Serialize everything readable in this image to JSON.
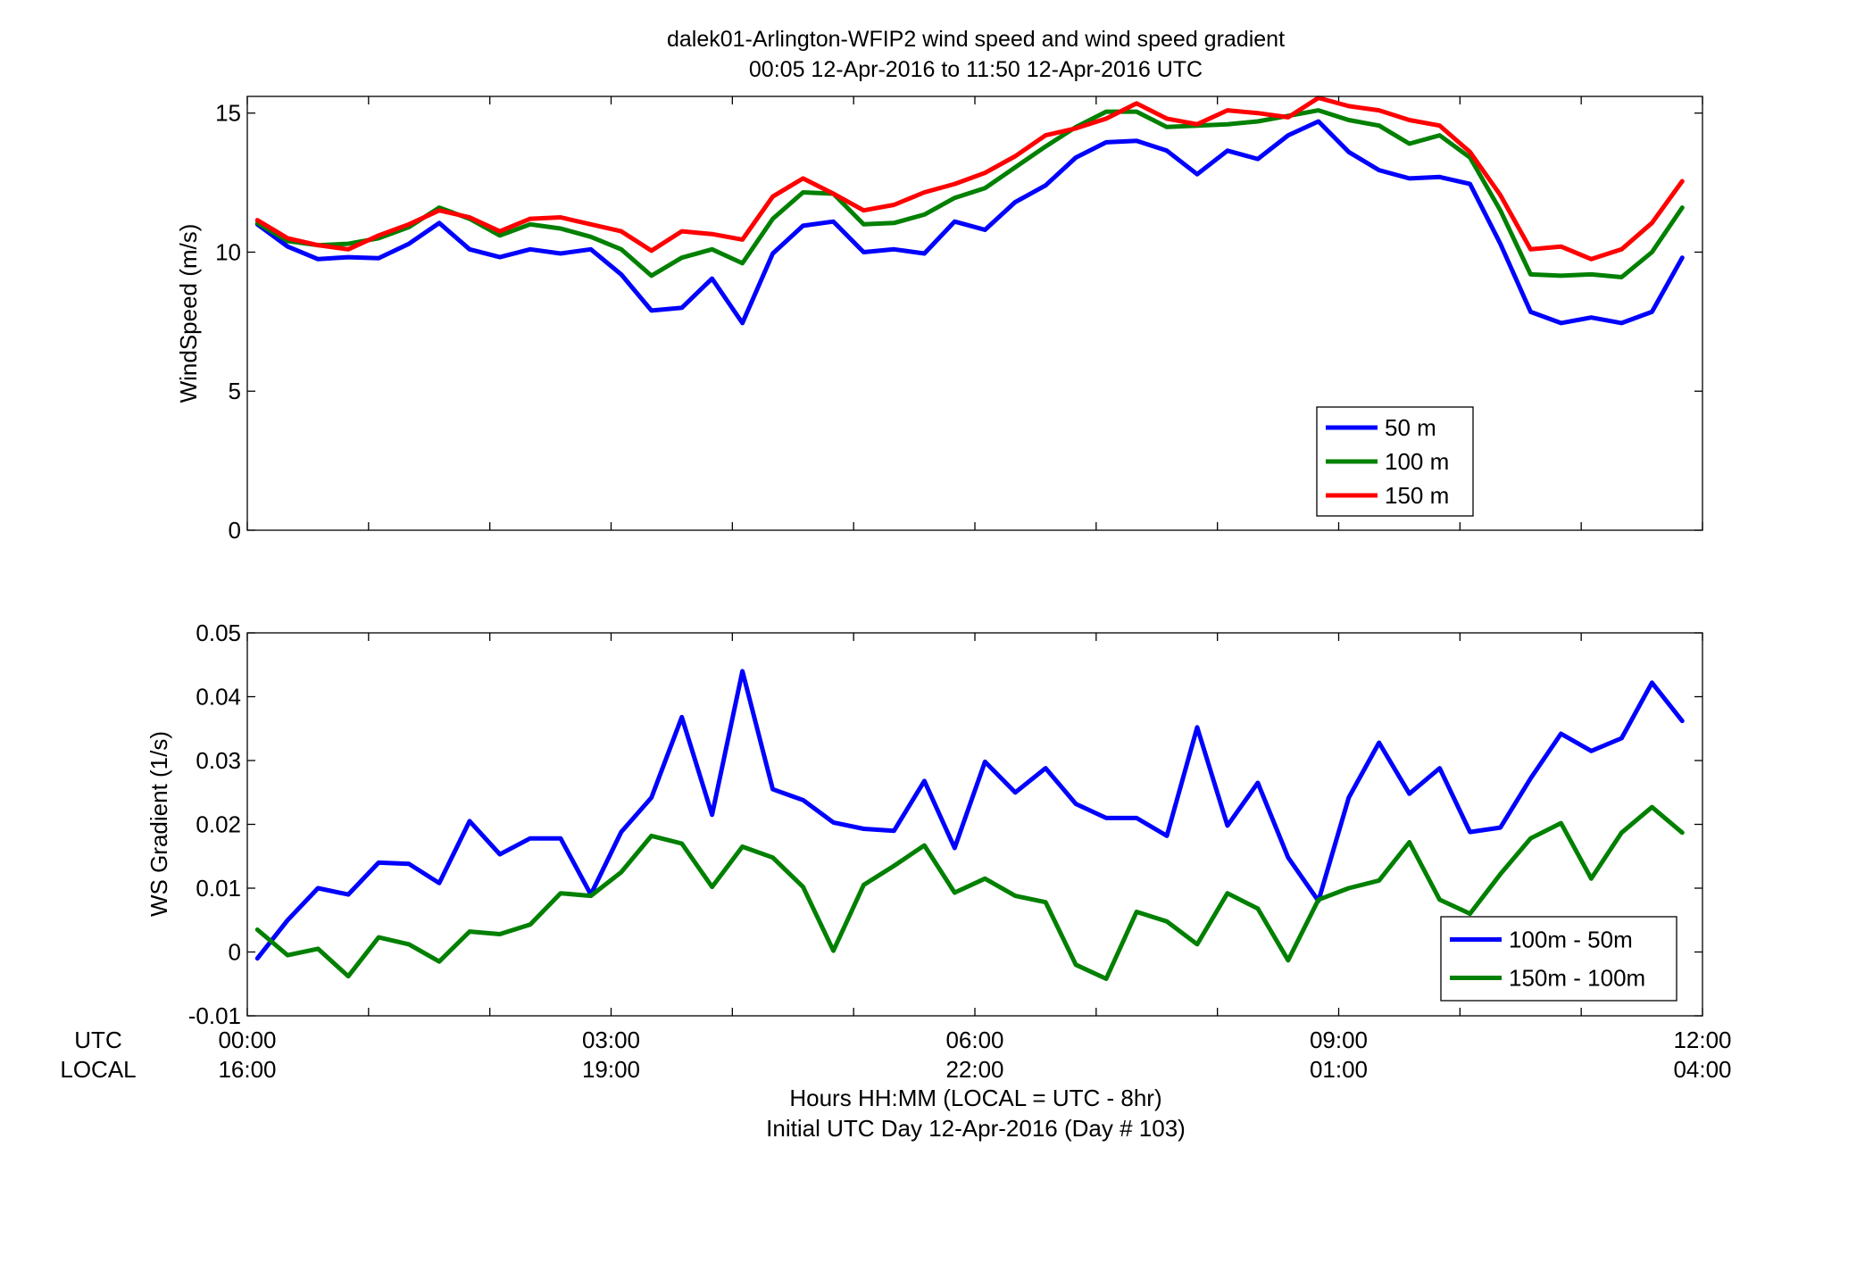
{
  "figure": {
    "title_line1": "dalek01-Arlington-WFIP2  wind speed and wind speed gradient",
    "title_line2": "00:05 12-Apr-2016 to 11:50 12-Apr-2016  UTC",
    "utc_row_label": "UTC",
    "local_row_label": "LOCAL",
    "xlabel_line1": "Hours HH:MM  (LOCAL = UTC - 8hr)",
    "xlabel_line2": "Initial UTC Day 12-Apr-2016 (Day # 103)",
    "x_ticks": [
      {
        "hour": 0,
        "utc": "00:00",
        "local": "16:00"
      },
      {
        "hour": 3,
        "utc": "03:00",
        "local": "19:00"
      },
      {
        "hour": 6,
        "utc": "06:00",
        "local": "22:00"
      },
      {
        "hour": 9,
        "utc": "09:00",
        "local": "01:00"
      },
      {
        "hour": 12,
        "utc": "12:00",
        "local": "04:00"
      }
    ]
  },
  "chart_data": [
    {
      "type": "line",
      "ylabel": "WindSpeed (m/s)",
      "xlim": [
        0,
        12
      ],
      "ylim": [
        0,
        15.6
      ],
      "y_ticks": [
        0,
        5,
        10,
        15
      ],
      "y_tick_labels": [
        "0",
        "5",
        "10",
        "15"
      ],
      "legend_position": "bottom-right",
      "x": [
        0.083,
        0.333,
        0.583,
        0.833,
        1.083,
        1.333,
        1.583,
        1.833,
        2.083,
        2.333,
        2.583,
        2.833,
        3.083,
        3.333,
        3.583,
        3.833,
        4.083,
        4.333,
        4.583,
        4.833,
        5.083,
        5.333,
        5.583,
        5.833,
        6.083,
        6.333,
        6.583,
        6.833,
        7.083,
        7.333,
        7.583,
        7.833,
        8.083,
        8.333,
        8.583,
        8.833,
        9.083,
        9.333,
        9.583,
        9.833,
        10.083,
        10.333,
        10.583,
        10.833,
        11.083,
        11.333,
        11.583,
        11.833
      ],
      "series": [
        {
          "name": "50 m",
          "color": "#0000ff",
          "values": [
            11.0,
            10.2,
            9.75,
            9.82,
            9.78,
            10.3,
            11.05,
            10.1,
            9.82,
            10.1,
            9.95,
            10.1,
            9.2,
            7.9,
            8.0,
            9.05,
            7.45,
            9.95,
            10.95,
            11.1,
            10.0,
            10.1,
            9.95,
            11.1,
            10.8,
            11.8,
            12.4,
            13.4,
            13.95,
            14.0,
            13.65,
            12.8,
            13.65,
            13.35,
            14.2,
            14.7,
            13.6,
            12.95,
            12.65,
            12.7,
            12.45,
            10.3,
            7.85,
            7.45,
            7.65,
            7.45,
            7.85,
            9.8
          ]
        },
        {
          "name": "100 m",
          "color": "#008000",
          "values": [
            11.05,
            10.4,
            10.25,
            10.3,
            10.5,
            10.9,
            11.6,
            11.2,
            10.6,
            11.0,
            10.85,
            10.55,
            10.1,
            9.15,
            9.8,
            10.1,
            9.6,
            11.2,
            12.15,
            12.1,
            11.0,
            11.05,
            11.35,
            11.95,
            12.3,
            13.05,
            13.8,
            14.5,
            15.05,
            15.05,
            14.5,
            14.55,
            14.6,
            14.7,
            14.9,
            15.1,
            14.75,
            14.55,
            13.9,
            14.2,
            13.4,
            11.5,
            9.2,
            9.15,
            9.2,
            9.1,
            10.0,
            11.6
          ]
        },
        {
          "name": "150 m",
          "color": "#ff0000",
          "values": [
            11.15,
            10.5,
            10.25,
            10.1,
            10.6,
            11.0,
            11.5,
            11.25,
            10.75,
            11.2,
            11.25,
            11.0,
            10.75,
            10.05,
            10.75,
            10.65,
            10.45,
            12.0,
            12.65,
            12.1,
            11.5,
            11.7,
            12.15,
            12.45,
            12.85,
            13.45,
            14.2,
            14.45,
            14.8,
            15.35,
            14.8,
            14.6,
            15.1,
            15.0,
            14.85,
            15.55,
            15.25,
            15.1,
            14.75,
            14.55,
            13.6,
            12.05,
            10.1,
            10.2,
            9.75,
            10.1,
            11.05,
            12.55
          ]
        }
      ]
    },
    {
      "type": "line",
      "ylabel": "WS Gradient (1/s)",
      "xlim": [
        0,
        12
      ],
      "ylim": [
        -0.01,
        0.05
      ],
      "y_ticks": [
        -0.01,
        0,
        0.01,
        0.02,
        0.03,
        0.04,
        0.05
      ],
      "y_tick_labels": [
        "-0.01",
        "0",
        "0.01",
        "0.02",
        "0.03",
        "0.04",
        "0.05"
      ],
      "legend_position": "bottom-right",
      "x": [
        0.083,
        0.333,
        0.583,
        0.833,
        1.083,
        1.333,
        1.583,
        1.833,
        2.083,
        2.333,
        2.583,
        2.833,
        3.083,
        3.333,
        3.583,
        3.833,
        4.083,
        4.333,
        4.583,
        4.833,
        5.083,
        5.333,
        5.583,
        5.833,
        6.083,
        6.333,
        6.583,
        6.833,
        7.083,
        7.333,
        7.583,
        7.833,
        8.083,
        8.333,
        8.583,
        8.833,
        9.083,
        9.333,
        9.583,
        9.833,
        10.083,
        10.333,
        10.583,
        10.833,
        11.083,
        11.333,
        11.583,
        11.833
      ],
      "series": [
        {
          "name": "100m - 50m",
          "color": "#0000ff",
          "values": [
            -0.001,
            0.005,
            0.01,
            0.009,
            0.014,
            0.0138,
            0.0108,
            0.0205,
            0.0153,
            0.0178,
            0.0178,
            0.009,
            0.0188,
            0.0242,
            0.0368,
            0.0215,
            0.044,
            0.0255,
            0.0238,
            0.0203,
            0.0193,
            0.019,
            0.0268,
            0.0163,
            0.0298,
            0.025,
            0.0288,
            0.0232,
            0.021,
            0.021,
            0.0182,
            0.0352,
            0.0198,
            0.0265,
            0.0148,
            0.008,
            0.0242,
            0.0328,
            0.0248,
            0.0288,
            0.0188,
            0.0195,
            0.0272,
            0.0342,
            0.0315,
            0.0335,
            0.0422,
            0.0362
          ]
        },
        {
          "name": "150m - 100m",
          "color": "#008000",
          "values": [
            0.0035,
            -0.0005,
            0.0005,
            -0.0038,
            0.0023,
            0.0012,
            -0.0015,
            0.0032,
            0.0028,
            0.0043,
            0.0092,
            0.0088,
            0.0125,
            0.0182,
            0.017,
            0.0102,
            0.0165,
            0.0148,
            0.0102,
            0.0002,
            0.0105,
            0.0135,
            0.0167,
            0.0093,
            0.0115,
            0.0088,
            0.0078,
            -0.002,
            -0.0042,
            0.0063,
            0.0048,
            0.0012,
            0.0092,
            0.0068,
            -0.0013,
            0.0082,
            0.01,
            0.0112,
            0.0172,
            0.0082,
            0.006,
            0.0122,
            0.0178,
            0.0202,
            0.0115,
            0.0187,
            0.0227,
            0.0187
          ]
        }
      ]
    }
  ]
}
